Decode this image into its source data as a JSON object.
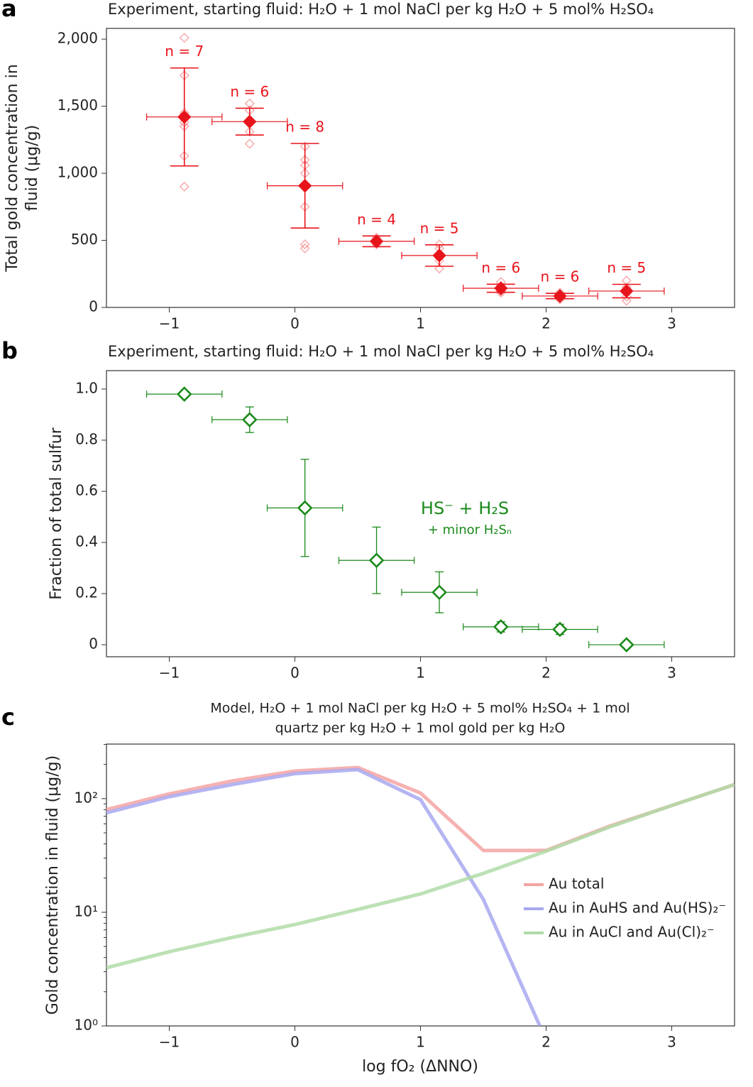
{
  "chart_data": [
    {
      "type": "scatter",
      "panel_label": "a",
      "title": "Experiment, starting fluid: H₂O + 1 mol NaCl per kg H₂O + 5 mol% H₂SO₄",
      "ylabel": [
        "Total gold concentration in",
        "fluid (μg/g)"
      ],
      "x": [
        -0.88,
        -0.36,
        0.08,
        0.65,
        1.15,
        1.64,
        2.11,
        2.64
      ],
      "values": [
        1420,
        1385,
        907,
        493,
        387,
        143,
        85,
        122
      ],
      "yerr": [
        365,
        100,
        315,
        40,
        80,
        30,
        20,
        50
      ],
      "xerr": [
        0.3,
        0.3,
        0.3,
        0.3,
        0.3,
        0.3,
        0.3,
        0.3
      ],
      "point_labels": [
        "n = 7",
        "n = 6",
        "n = 8",
        "n = 4",
        "n = 5",
        "n = 6",
        "n = 6",
        "n = 5"
      ],
      "replicates": [
        [
          2010,
          1730,
          1450,
          1380,
          1350,
          1130,
          900
        ],
        [
          1520,
          1470,
          1400,
          1390,
          1310,
          1220
        ],
        [
          1200,
          1100,
          1060,
          1000,
          900,
          750,
          470,
          440
        ],
        [
          520,
          500,
          480,
          470
        ],
        [
          470,
          440,
          380,
          350,
          290
        ],
        [
          190,
          160,
          140,
          130,
          120,
          110
        ],
        [
          110,
          95,
          85,
          80,
          70,
          60
        ],
        [
          200,
          150,
          110,
          80,
          50
        ]
      ],
      "color": "#e8141b",
      "marker_filled": true,
      "xlim": [
        -1.5,
        3.5
      ],
      "ylim": [
        0,
        2080
      ],
      "xticks": [
        {
          "value": -1,
          "label": "−1"
        },
        0,
        1,
        2,
        3
      ],
      "yticks": [
        0,
        500,
        {
          "value": 1000,
          "label": "1,000"
        },
        {
          "value": 1500,
          "label": "1,500"
        },
        {
          "value": 2000,
          "label": "2,000"
        }
      ]
    },
    {
      "type": "scatter",
      "panel_label": "b",
      "title": "Experiment, starting fluid: H₂O + 1 mol NaCl per kg H₂O + 5 mol% H₂SO₄",
      "ylabel": [
        "Fraction of total sulfur"
      ],
      "x": [
        -0.88,
        -0.36,
        0.08,
        0.65,
        1.15,
        1.64,
        2.11,
        2.64
      ],
      "values": [
        0.98,
        0.88,
        0.535,
        0.33,
        0.205,
        0.07,
        0.06,
        0.0
      ],
      "yerr": [
        0.005,
        0.05,
        0.19,
        0.13,
        0.08,
        0.02,
        0.02,
        0.005
      ],
      "xerr": [
        0.3,
        0.3,
        0.3,
        0.3,
        0.3,
        0.3,
        0.3,
        0.3
      ],
      "annotations": [
        "HS⁻ + H₂S",
        "+ minor H₂Sₙ"
      ],
      "color": "#1a8a1a",
      "marker_filled": false,
      "xlim": [
        -1.5,
        3.5
      ],
      "ylim": [
        -0.047,
        1.072
      ],
      "xticks": [
        {
          "value": -1,
          "label": "−1"
        },
        0,
        1,
        2,
        3
      ],
      "yticks": [
        0,
        0.2,
        0.4,
        0.6,
        0.8,
        {
          "value": 1,
          "label": "1.0"
        }
      ]
    },
    {
      "type": "line",
      "panel_label": "c",
      "title": [
        "Model, H₂O + 1 mol NaCl per kg H₂O + 5 mol% H₂SO₄ + 1 mol",
        "quartz per kg H₂O + 1 mol gold per kg H₂O"
      ],
      "ylabel": [
        "Gold concentration in fluid (μg/g)"
      ],
      "xlabel": "log fO₂ (ΔNNO)",
      "log_y": true,
      "series": [
        {
          "name": "Au total",
          "color": "#f4a3a3",
          "x": [
            -1.5,
            -1,
            -0.5,
            0,
            0.5,
            1,
            1.5,
            2,
            2.5,
            3,
            3.5
          ],
          "values": [
            80,
            110,
            143,
            175,
            188,
            112,
            35,
            35,
            57,
            87,
            133
          ]
        },
        {
          "name": "Au in AuHS and Au(HS)₂⁻",
          "color": "#a8a8f0",
          "x": [
            -1.5,
            -1,
            -0.5,
            0,
            0.5,
            1,
            1.5,
            1.95
          ],
          "values": [
            75,
            104,
            133,
            166,
            180,
            98,
            13,
            1
          ]
        },
        {
          "name": "Au in AuCl and Au(Cl)₂⁻",
          "color": "#b0dca8",
          "x": [
            -1.5,
            -1,
            -0.5,
            0,
            0.5,
            1,
            1.5,
            2,
            2.5,
            3,
            3.5
          ],
          "values": [
            3.25,
            4.5,
            6.0,
            7.8,
            10.6,
            14.5,
            22,
            34.5,
            56,
            87,
            133
          ]
        }
      ],
      "xlim": [
        -1.5,
        3.5
      ],
      "ylim": [
        1,
        302
      ],
      "xticks": [
        {
          "value": -1,
          "label": "−1"
        },
        0,
        1,
        2,
        3
      ],
      "yticks": [
        {
          "value": 1,
          "label": "10⁰"
        },
        {
          "value": 10,
          "label": "10¹"
        },
        {
          "value": 100,
          "label": "10²"
        }
      ]
    }
  ]
}
